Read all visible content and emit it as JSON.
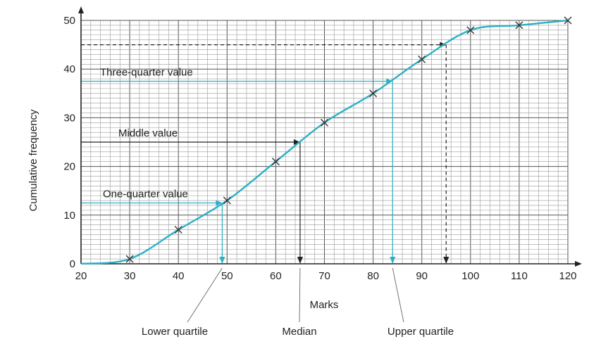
{
  "chart_data": {
    "type": "line",
    "title": "",
    "xlabel": "Marks",
    "ylabel": "Cumulative frequency",
    "xlim": [
      20,
      120
    ],
    "ylim": [
      0,
      50
    ],
    "x_ticks": [
      20,
      30,
      40,
      50,
      60,
      70,
      80,
      90,
      100,
      110,
      120
    ],
    "y_ticks": [
      0,
      10,
      20,
      30,
      40,
      50
    ],
    "grid": true,
    "series": [
      {
        "x": [
          20,
          30,
          40,
          50,
          60,
          70,
          80,
          90,
          100,
          110,
          120
        ],
        "y": [
          0,
          1,
          7,
          13,
          21,
          29,
          35,
          42,
          48,
          49,
          50
        ]
      }
    ],
    "guides": [
      {
        "label": "One-quarter value",
        "y": 12.5,
        "x": 49,
        "color": "#2ab0c5",
        "dashed": false
      },
      {
        "label": "Middle value",
        "y": 25,
        "x": 65,
        "color": "#222222",
        "dashed": false
      },
      {
        "label": "Three-quarter value",
        "y": 37.5,
        "x": 84,
        "color": "#2ab0c5",
        "dashed": false
      },
      {
        "label": "",
        "y": 45,
        "x": 95,
        "color": "#222222",
        "dashed": true
      }
    ],
    "callouts": [
      {
        "label": "Lower quartile",
        "x": 49
      },
      {
        "label": "Median",
        "x": 65
      },
      {
        "label": "Upper quartile",
        "x": 84
      }
    ],
    "colors": {
      "curve": "#2ab0c5",
      "grid_major": "#555555",
      "grid_minor": "#9a9a9a",
      "axis": "#222222"
    }
  }
}
